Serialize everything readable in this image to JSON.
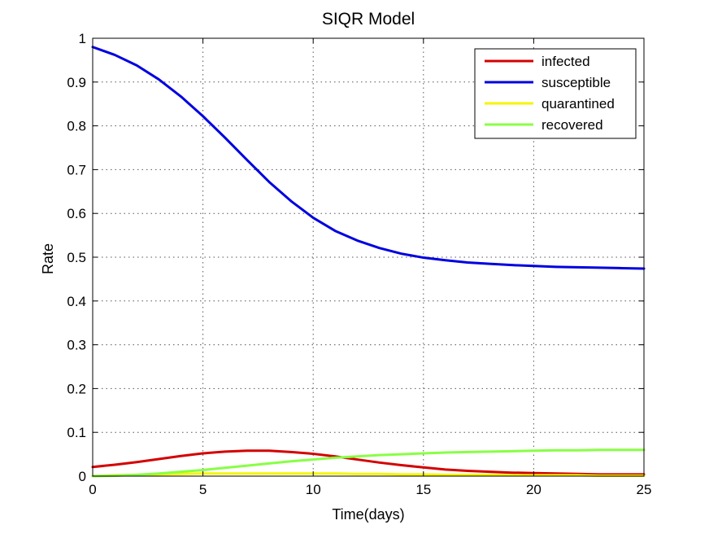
{
  "chart_data": {
    "type": "line",
    "title": "SIQR Model",
    "xlabel": "Time(days)",
    "ylabel": "Rate",
    "xlim": [
      0,
      25
    ],
    "ylim": [
      0,
      1
    ],
    "xticks": [
      0,
      5,
      10,
      15,
      20,
      25
    ],
    "yticks": [
      0,
      0.1,
      0.2,
      0.3,
      0.4,
      0.5,
      0.6,
      0.7,
      0.8,
      0.9,
      1
    ],
    "grid": true,
    "legend_position": "top-right",
    "series": [
      {
        "name": "infected",
        "color": "#d40000",
        "x": [
          0,
          1,
          2,
          3,
          4,
          5,
          6,
          7,
          8,
          9,
          10,
          11,
          12,
          13,
          14,
          15,
          16,
          17,
          18,
          19,
          20,
          21,
          22,
          23,
          24,
          25
        ],
        "y": [
          0.021,
          0.026,
          0.032,
          0.039,
          0.046,
          0.052,
          0.056,
          0.058,
          0.058,
          0.055,
          0.051,
          0.045,
          0.038,
          0.031,
          0.025,
          0.02,
          0.015,
          0.012,
          0.01,
          0.008,
          0.007,
          0.006,
          0.005,
          0.004,
          0.004,
          0.004
        ]
      },
      {
        "name": "susceptible",
        "color": "#0000e0",
        "x": [
          0,
          1,
          2,
          3,
          4,
          5,
          6,
          7,
          8,
          9,
          10,
          11,
          12,
          13,
          14,
          15,
          16,
          17,
          18,
          19,
          20,
          21,
          22,
          23,
          24,
          25
        ],
        "y": [
          0.98,
          0.962,
          0.938,
          0.906,
          0.867,
          0.822,
          0.773,
          0.722,
          0.672,
          0.628,
          0.59,
          0.56,
          0.538,
          0.521,
          0.508,
          0.499,
          0.493,
          0.488,
          0.485,
          0.482,
          0.48,
          0.478,
          0.477,
          0.476,
          0.475,
          0.474
        ]
      },
      {
        "name": "quarantined",
        "color": "#f5f500",
        "x": [
          0,
          1,
          2,
          3,
          4,
          5,
          6,
          7,
          8,
          9,
          10,
          11,
          12,
          13,
          14,
          15,
          16,
          17,
          18,
          19,
          20,
          21,
          22,
          23,
          24,
          25
        ],
        "y": [
          0.0,
          0.002,
          0.003,
          0.004,
          0.005,
          0.006,
          0.006,
          0.006,
          0.006,
          0.006,
          0.006,
          0.006,
          0.005,
          0.005,
          0.004,
          0.004,
          0.003,
          0.003,
          0.003,
          0.002,
          0.002,
          0.002,
          0.002,
          0.001,
          0.001,
          0.001
        ]
      },
      {
        "name": "recovered",
        "color": "#88ff44",
        "x": [
          0,
          1,
          2,
          3,
          4,
          5,
          6,
          7,
          8,
          9,
          10,
          11,
          12,
          13,
          14,
          15,
          16,
          17,
          18,
          19,
          20,
          21,
          22,
          23,
          24,
          25
        ],
        "y": [
          0.0,
          0.001,
          0.003,
          0.006,
          0.01,
          0.014,
          0.019,
          0.024,
          0.029,
          0.034,
          0.038,
          0.042,
          0.045,
          0.048,
          0.05,
          0.052,
          0.054,
          0.055,
          0.056,
          0.057,
          0.058,
          0.059,
          0.059,
          0.06,
          0.06,
          0.06
        ]
      }
    ]
  }
}
